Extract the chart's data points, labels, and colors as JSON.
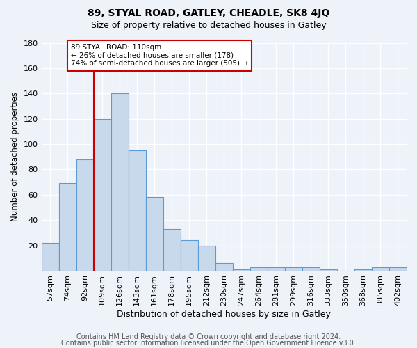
{
  "title": "89, STYAL ROAD, GATLEY, CHEADLE, SK8 4JQ",
  "subtitle": "Size of property relative to detached houses in Gatley",
  "xlabel": "Distribution of detached houses by size in Gatley",
  "ylabel": "Number of detached properties",
  "categories": [
    "57sqm",
    "74sqm",
    "92sqm",
    "109sqm",
    "126sqm",
    "143sqm",
    "161sqm",
    "178sqm",
    "195sqm",
    "212sqm",
    "230sqm",
    "247sqm",
    "264sqm",
    "281sqm",
    "299sqm",
    "316sqm",
    "333sqm",
    "350sqm",
    "368sqm",
    "385sqm",
    "402sqm"
  ],
  "values": [
    22,
    69,
    88,
    120,
    140,
    95,
    58,
    33,
    24,
    20,
    6,
    1,
    3,
    3,
    3,
    3,
    1,
    0,
    1,
    3,
    3
  ],
  "bar_color": "#c9d9ec",
  "bar_edge_color": "#5b9bd5",
  "red_line_index": 3,
  "annotation_title": "89 STYAL ROAD: 110sqm",
  "annotation_line1": "← 26% of detached houses are smaller (178)",
  "annotation_line2": "74% of semi-detached houses are larger (505) →",
  "annotation_box_facecolor": "#ffffff",
  "annotation_box_edgecolor": "#cc0000",
  "ylim": [
    0,
    180
  ],
  "yticks": [
    0,
    20,
    40,
    60,
    80,
    100,
    120,
    140,
    160,
    180
  ],
  "footer1": "Contains HM Land Registry data © Crown copyright and database right 2024.",
  "footer2": "Contains public sector information licensed under the Open Government Licence v3.0.",
  "background_color": "#eef2f9",
  "grid_color": "#ffffff",
  "title_fontsize": 10,
  "subtitle_fontsize": 9,
  "xlabel_fontsize": 9,
  "ylabel_fontsize": 8.5,
  "tick_fontsize": 8,
  "annotation_fontsize": 7.5,
  "footer_fontsize": 7
}
